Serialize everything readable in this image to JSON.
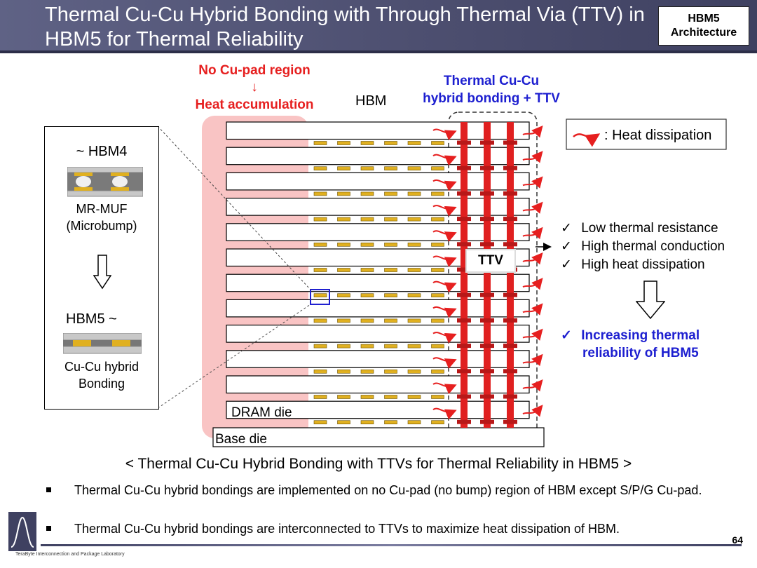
{
  "header": {
    "title": "Thermal Cu-Cu Hybrid Bonding with Through Thermal Via (TTV) in\nHBM5 for Thermal Reliability",
    "tag_line1": "HBM5",
    "tag_line2": "Architecture"
  },
  "diagram": {
    "no_pad_label": "No Cu-pad region",
    "down_arrow": "↓",
    "heat_accum_label": "Heat accumulation",
    "hbm_label": "HBM",
    "ttv_label_line1": "Thermal Cu-Cu",
    "ttv_label_line2": "hybrid bonding + TTV",
    "legend_text": ": Heat dissipation",
    "ttv_tag": "TTV",
    "dram_die_label": "DRAM die",
    "base_die_label": "Base die",
    "dram_die_count": 12
  },
  "inset": {
    "hbm4_label": "~ HBM4",
    "hbm4_desc_line1": "MR-MUF",
    "hbm4_desc_line2": "(Microbump)",
    "hbm5_label": "HBM5 ~",
    "hbm5_desc_line1": "Cu-Cu hybrid",
    "hbm5_desc_line2": "Bonding"
  },
  "benefits": {
    "items": [
      "Low thermal resistance",
      "High thermal conduction",
      "High heat dissipation"
    ],
    "result_line1": "Increasing thermal",
    "result_line2": "reliability of HBM5",
    "check_mark": "✓"
  },
  "caption": "< Thermal Cu-Cu Hybrid Bonding with TTVs for Thermal Reliability in HBM5 >",
  "bullets": [
    "Thermal Cu-Cu hybrid bondings are implemented on no Cu-pad (no bump) region of HBM except S/P/G Cu-pad.",
    "Thermal Cu-Cu hybrid bondings are interconnected to TTVs to maximize heat dissipation of HBM."
  ],
  "footer": {
    "lab_name": "TeraByte Interconnection and Package Laboratory",
    "page_number": "64"
  },
  "colors": {
    "header": "#4d4f70",
    "red": "#e61f1f",
    "blue": "#1d1fd0",
    "highlight": "#f9c4c4",
    "pad_gold": "#e0b020",
    "ttv_red": "#e02020"
  }
}
